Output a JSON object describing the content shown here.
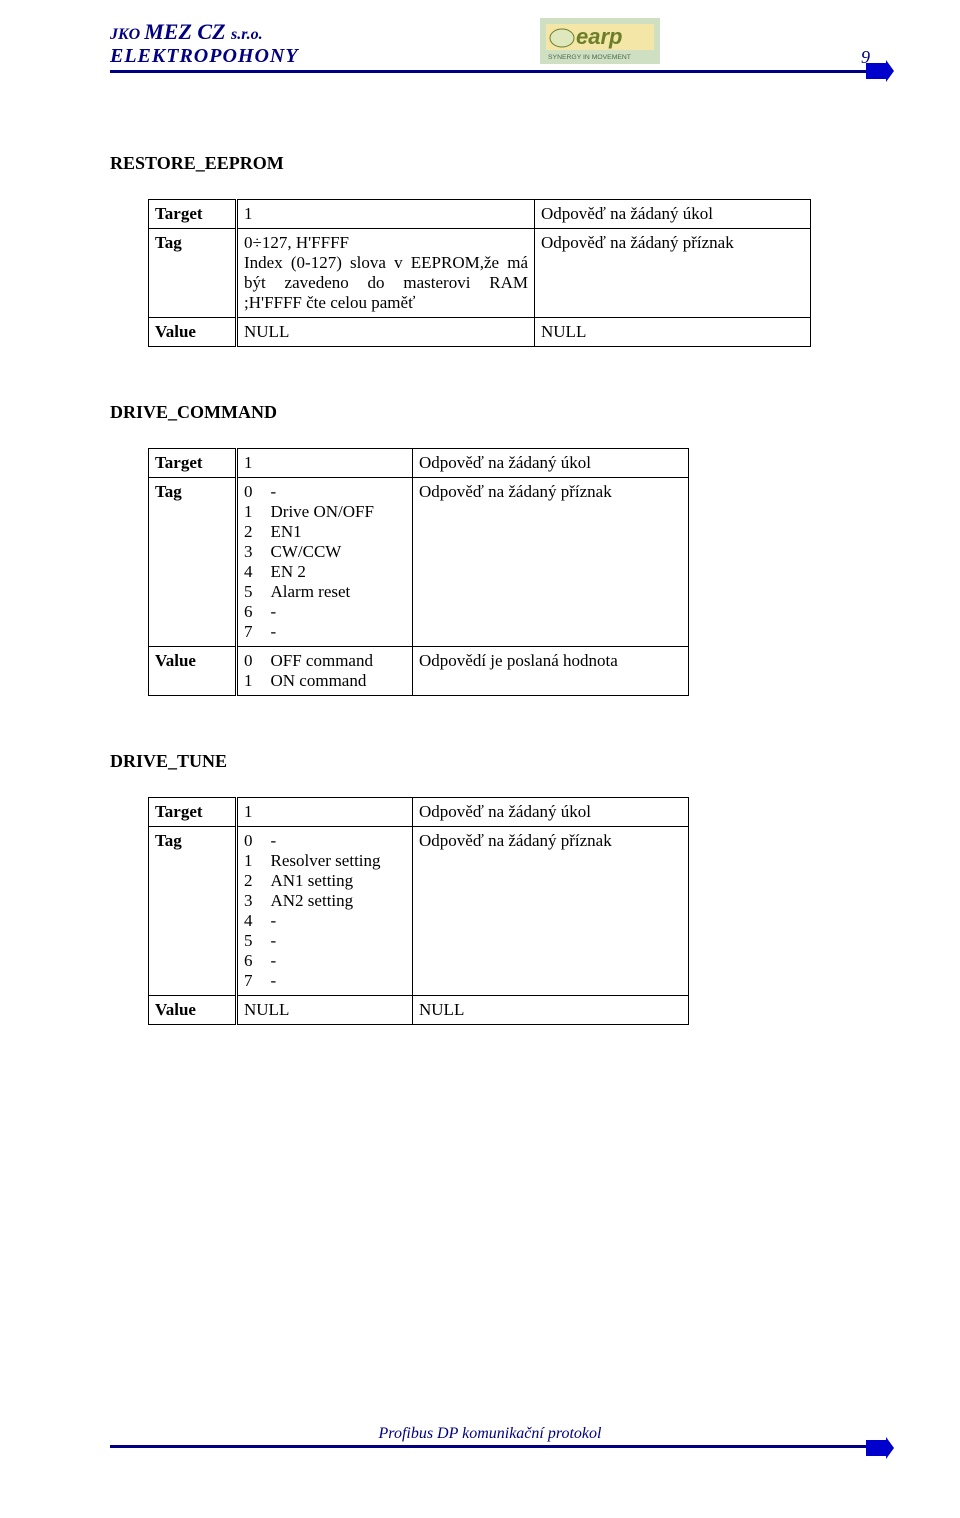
{
  "page": {
    "number": "9",
    "footer": "Profibus DP  komunikační protokol"
  },
  "header": {
    "company_l1_a": "JKO ",
    "company_l1_b": "MEZ CZ ",
    "company_l1_c": "s.r.o.",
    "company_l2": "ELEKTROPOHONY"
  },
  "logo": {
    "main_text": "earp",
    "sub_text": "SYNERGY IN MOVEMENT",
    "bg_outer": "#cfe0c2",
    "bg_inner": "#f3e6a6",
    "text_color": "#6b7f2b",
    "sub_color": "#4a6a4a"
  },
  "arrow_color": "#0000cc",
  "line_color": "#000080",
  "section1": {
    "title": "RESTORE_EEPROM",
    "rows": [
      {
        "label": "Target",
        "c2": "1",
        "c3": "Odpověď na žádaný  úkol"
      },
      {
        "label": "Tag",
        "c2": "0÷127, H'FFFF\nIndex (0-127)  slova v EEPROM,že má být zavedeno do masterovi RAM ;H'FFFF čte celou paměť",
        "c3": "Odpověď na žádaný příznak"
      },
      {
        "label": "Value",
        "c2": "NULL",
        "c3": "NULL"
      }
    ]
  },
  "section2": {
    "title": "DRIVE_COMMAND",
    "rows": [
      {
        "label": "Target",
        "c2": "1",
        "c3": "Odpověď na žádaný  úkol",
        "split": false
      },
      {
        "label": "Tag",
        "c2_nums": "0\n1\n2\n3\n4\n5\n6\n7",
        "c2_labs": "-\nDrive ON/OFF\nEN1\nCW/CCW\nEN 2\nAlarm reset\n-\n-",
        "c3": "Odpověď na žádaný příznak",
        "split": true
      },
      {
        "label": "Value",
        "c2_nums": "0\n1",
        "c2_labs": "OFF command\nON command",
        "c3": "Odpovědí je poslaná hodnota",
        "split": true
      }
    ]
  },
  "section3": {
    "title": "DRIVE_TUNE",
    "rows": [
      {
        "label": "Target",
        "c2": "1",
        "c3": "Odpověď na žádaný  úkol",
        "split": false
      },
      {
        "label": "Tag",
        "c2_nums": "0\n1\n2\n3\n4\n5\n6\n7",
        "c2_labs": "-\nResolver setting\n AN1 setting\nAN2 setting\n-\n-\n-\n-",
        "c3": "Odpověď na žádaný příznak",
        "split": true
      },
      {
        "label": "Value",
        "c2": "NULL",
        "c3": "NULL",
        "split": false
      }
    ]
  },
  "table_widths": {
    "s1": {
      "c2": 298,
      "c3": 276
    },
    "s2": {
      "c2": 176,
      "c3": 276
    },
    "s3": {
      "c2": 176,
      "c3": 276
    }
  }
}
